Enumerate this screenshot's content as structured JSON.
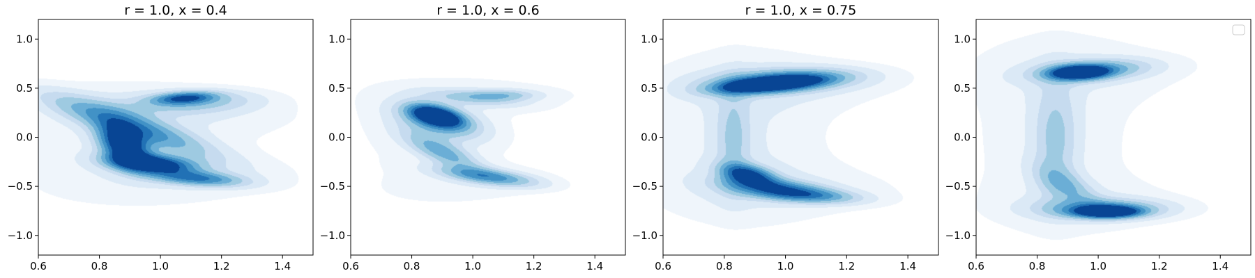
{
  "chart_data": [
    {
      "type": "contour",
      "title": "r = 1.0, x = 0.4",
      "xlim": [
        0.6,
        1.5
      ],
      "ylim": [
        -1.2,
        1.2
      ],
      "xticks": [
        "0.6",
        "0.8",
        "1.0",
        "1.2",
        "1.4"
      ],
      "yticks": [
        "1.0",
        "0.5",
        "0.0",
        "−0.5",
        "−1.0"
      ],
      "legend": false,
      "base": [
        {
          "x": 0.88,
          "y": 0.0,
          "rx": 0.3,
          "ry": 0.45,
          "angle": 0,
          "w": 0.15
        },
        {
          "x": 1.1,
          "y": 0.28,
          "rx": 0.45,
          "ry": 0.18,
          "angle": -10,
          "w": 0.1
        },
        {
          "x": 1.12,
          "y": -0.45,
          "rx": 0.45,
          "ry": 0.22,
          "angle": 10,
          "w": 0.1
        }
      ],
      "blobs": [
        {
          "x": 0.9,
          "y": 0.12,
          "rx": 0.07,
          "ry": 0.28,
          "angle": 40,
          "w": 0.55
        },
        {
          "x": 0.88,
          "y": -0.08,
          "rx": 0.05,
          "ry": 0.14,
          "angle": 10,
          "w": 1.0
        },
        {
          "x": 0.97,
          "y": -0.27,
          "rx": 0.1,
          "ry": 0.06,
          "angle": -20,
          "w": 1.0
        },
        {
          "x": 1.12,
          "y": -0.42,
          "rx": 0.11,
          "ry": 0.05,
          "angle": -15,
          "w": 0.6
        },
        {
          "x": 1.08,
          "y": 0.4,
          "rx": 0.07,
          "ry": 0.04,
          "angle": 15,
          "w": 0.6
        },
        {
          "x": 1.12,
          "y": 0.36,
          "rx": 0.15,
          "ry": 0.08,
          "angle": 10,
          "w": 0.3
        }
      ]
    },
    {
      "type": "contour",
      "title": "r = 1.0, x = 0.6",
      "xlim": [
        0.6,
        1.5
      ],
      "ylim": [
        -1.2,
        1.2
      ],
      "xticks": [
        "0.6",
        "0.8",
        "1.0",
        "1.2",
        "1.4"
      ],
      "yticks": [
        "1.0",
        "0.5",
        "0.0",
        "−0.5",
        "−1.0"
      ],
      "legend": false,
      "base": [
        {
          "x": 0.85,
          "y": 0.0,
          "rx": 0.3,
          "ry": 0.5,
          "angle": 0,
          "w": 0.12
        },
        {
          "x": 1.15,
          "y": 0.45,
          "rx": 0.4,
          "ry": 0.15,
          "angle": -5,
          "w": 0.08
        },
        {
          "x": 1.05,
          "y": -0.5,
          "rx": 0.3,
          "ry": 0.15,
          "angle": 15,
          "w": 0.08
        }
      ],
      "blobs": [
        {
          "x": 0.88,
          "y": 0.22,
          "rx": 0.045,
          "ry": 0.08,
          "angle": 30,
          "w": 1.0
        },
        {
          "x": 0.89,
          "y": 0.16,
          "rx": 0.08,
          "ry": 0.14,
          "angle": 30,
          "w": 0.5
        },
        {
          "x": 0.9,
          "y": -0.15,
          "rx": 0.05,
          "ry": 0.15,
          "angle": 30,
          "w": 0.45
        },
        {
          "x": 1.05,
          "y": -0.4,
          "rx": 0.12,
          "ry": 0.05,
          "angle": -25,
          "w": 0.55
        },
        {
          "x": 1.1,
          "y": 0.43,
          "rx": 0.08,
          "ry": 0.04,
          "angle": 0,
          "w": 0.3
        },
        {
          "x": 1.0,
          "y": 0.4,
          "rx": 0.12,
          "ry": 0.05,
          "angle": -20,
          "w": 0.25
        }
      ]
    },
    {
      "type": "contour",
      "title": "r = 1.0, x = 0.75",
      "xlim": [
        0.6,
        1.5
      ],
      "ylim": [
        -1.2,
        1.2
      ],
      "xticks": [
        "0.6",
        "0.8",
        "1.0",
        "1.2",
        "1.4"
      ],
      "yticks": [
        "1.0",
        "0.5",
        "0.0",
        "−0.5",
        "−1.0"
      ],
      "legend": false,
      "base": [
        {
          "x": 0.85,
          "y": 0.0,
          "rx": 0.25,
          "ry": 0.75,
          "angle": 0,
          "w": 0.18
        },
        {
          "x": 1.1,
          "y": 0.55,
          "rx": 0.4,
          "ry": 0.2,
          "angle": 0,
          "w": 0.1
        },
        {
          "x": 1.1,
          "y": -0.55,
          "rx": 0.4,
          "ry": 0.2,
          "angle": 0,
          "w": 0.1
        }
      ],
      "blobs": [
        {
          "x": 0.95,
          "y": 0.54,
          "rx": 0.12,
          "ry": 0.05,
          "angle": 18,
          "w": 1.0
        },
        {
          "x": 1.0,
          "y": 0.58,
          "rx": 0.17,
          "ry": 0.08,
          "angle": 10,
          "w": 0.5
        },
        {
          "x": 0.88,
          "y": -0.38,
          "rx": 0.05,
          "ry": 0.08,
          "angle": 30,
          "w": 0.75
        },
        {
          "x": 0.97,
          "y": -0.52,
          "rx": 0.12,
          "ry": 0.06,
          "angle": -20,
          "w": 0.6
        },
        {
          "x": 1.08,
          "y": -0.6,
          "rx": 0.12,
          "ry": 0.05,
          "angle": -10,
          "w": 0.4
        },
        {
          "x": 0.83,
          "y": 0.0,
          "rx": 0.04,
          "ry": 0.35,
          "angle": 0,
          "w": 0.25
        }
      ]
    },
    {
      "type": "contour",
      "title": "",
      "xlim": [
        0.6,
        1.5
      ],
      "ylim": [
        -1.2,
        1.2
      ],
      "xticks": [
        "0.6",
        "0.8",
        "1.0",
        "1.2",
        "1.4"
      ],
      "yticks": [
        "1.0",
        "0.5",
        "0.0",
        "−0.5",
        "−1.0"
      ],
      "legend": true,
      "base": [
        {
          "x": 0.85,
          "y": 0.0,
          "rx": 0.25,
          "ry": 0.9,
          "angle": 0,
          "w": 0.15
        },
        {
          "x": 1.1,
          "y": 0.7,
          "rx": 0.45,
          "ry": 0.25,
          "angle": 0,
          "w": 0.08
        },
        {
          "x": 1.1,
          "y": -0.7,
          "rx": 0.35,
          "ry": 0.2,
          "angle": 0,
          "w": 0.08
        }
      ],
      "blobs": [
        {
          "x": 0.94,
          "y": 0.66,
          "rx": 0.06,
          "ry": 0.045,
          "angle": 15,
          "w": 1.0
        },
        {
          "x": 0.98,
          "y": 0.68,
          "rx": 0.13,
          "ry": 0.07,
          "angle": 15,
          "w": 0.5
        },
        {
          "x": 1.03,
          "y": -0.76,
          "rx": 0.07,
          "ry": 0.04,
          "angle": 0,
          "w": 1.0
        },
        {
          "x": 1.02,
          "y": -0.73,
          "rx": 0.14,
          "ry": 0.07,
          "angle": 0,
          "w": 0.5
        },
        {
          "x": 0.86,
          "y": 0.0,
          "rx": 0.05,
          "ry": 0.4,
          "angle": 0,
          "w": 0.28
        },
        {
          "x": 0.9,
          "y": -0.5,
          "rx": 0.05,
          "ry": 0.15,
          "angle": 20,
          "w": 0.3
        }
      ]
    }
  ],
  "colors": {
    "levels": [
      "#eff5fb",
      "#dbe9f6",
      "#c6dbef",
      "#9ecae1",
      "#6baed6",
      "#4292c6",
      "#2171b5",
      "#084594"
    ],
    "axis": "#000000",
    "legend_border": "#cccccc"
  }
}
